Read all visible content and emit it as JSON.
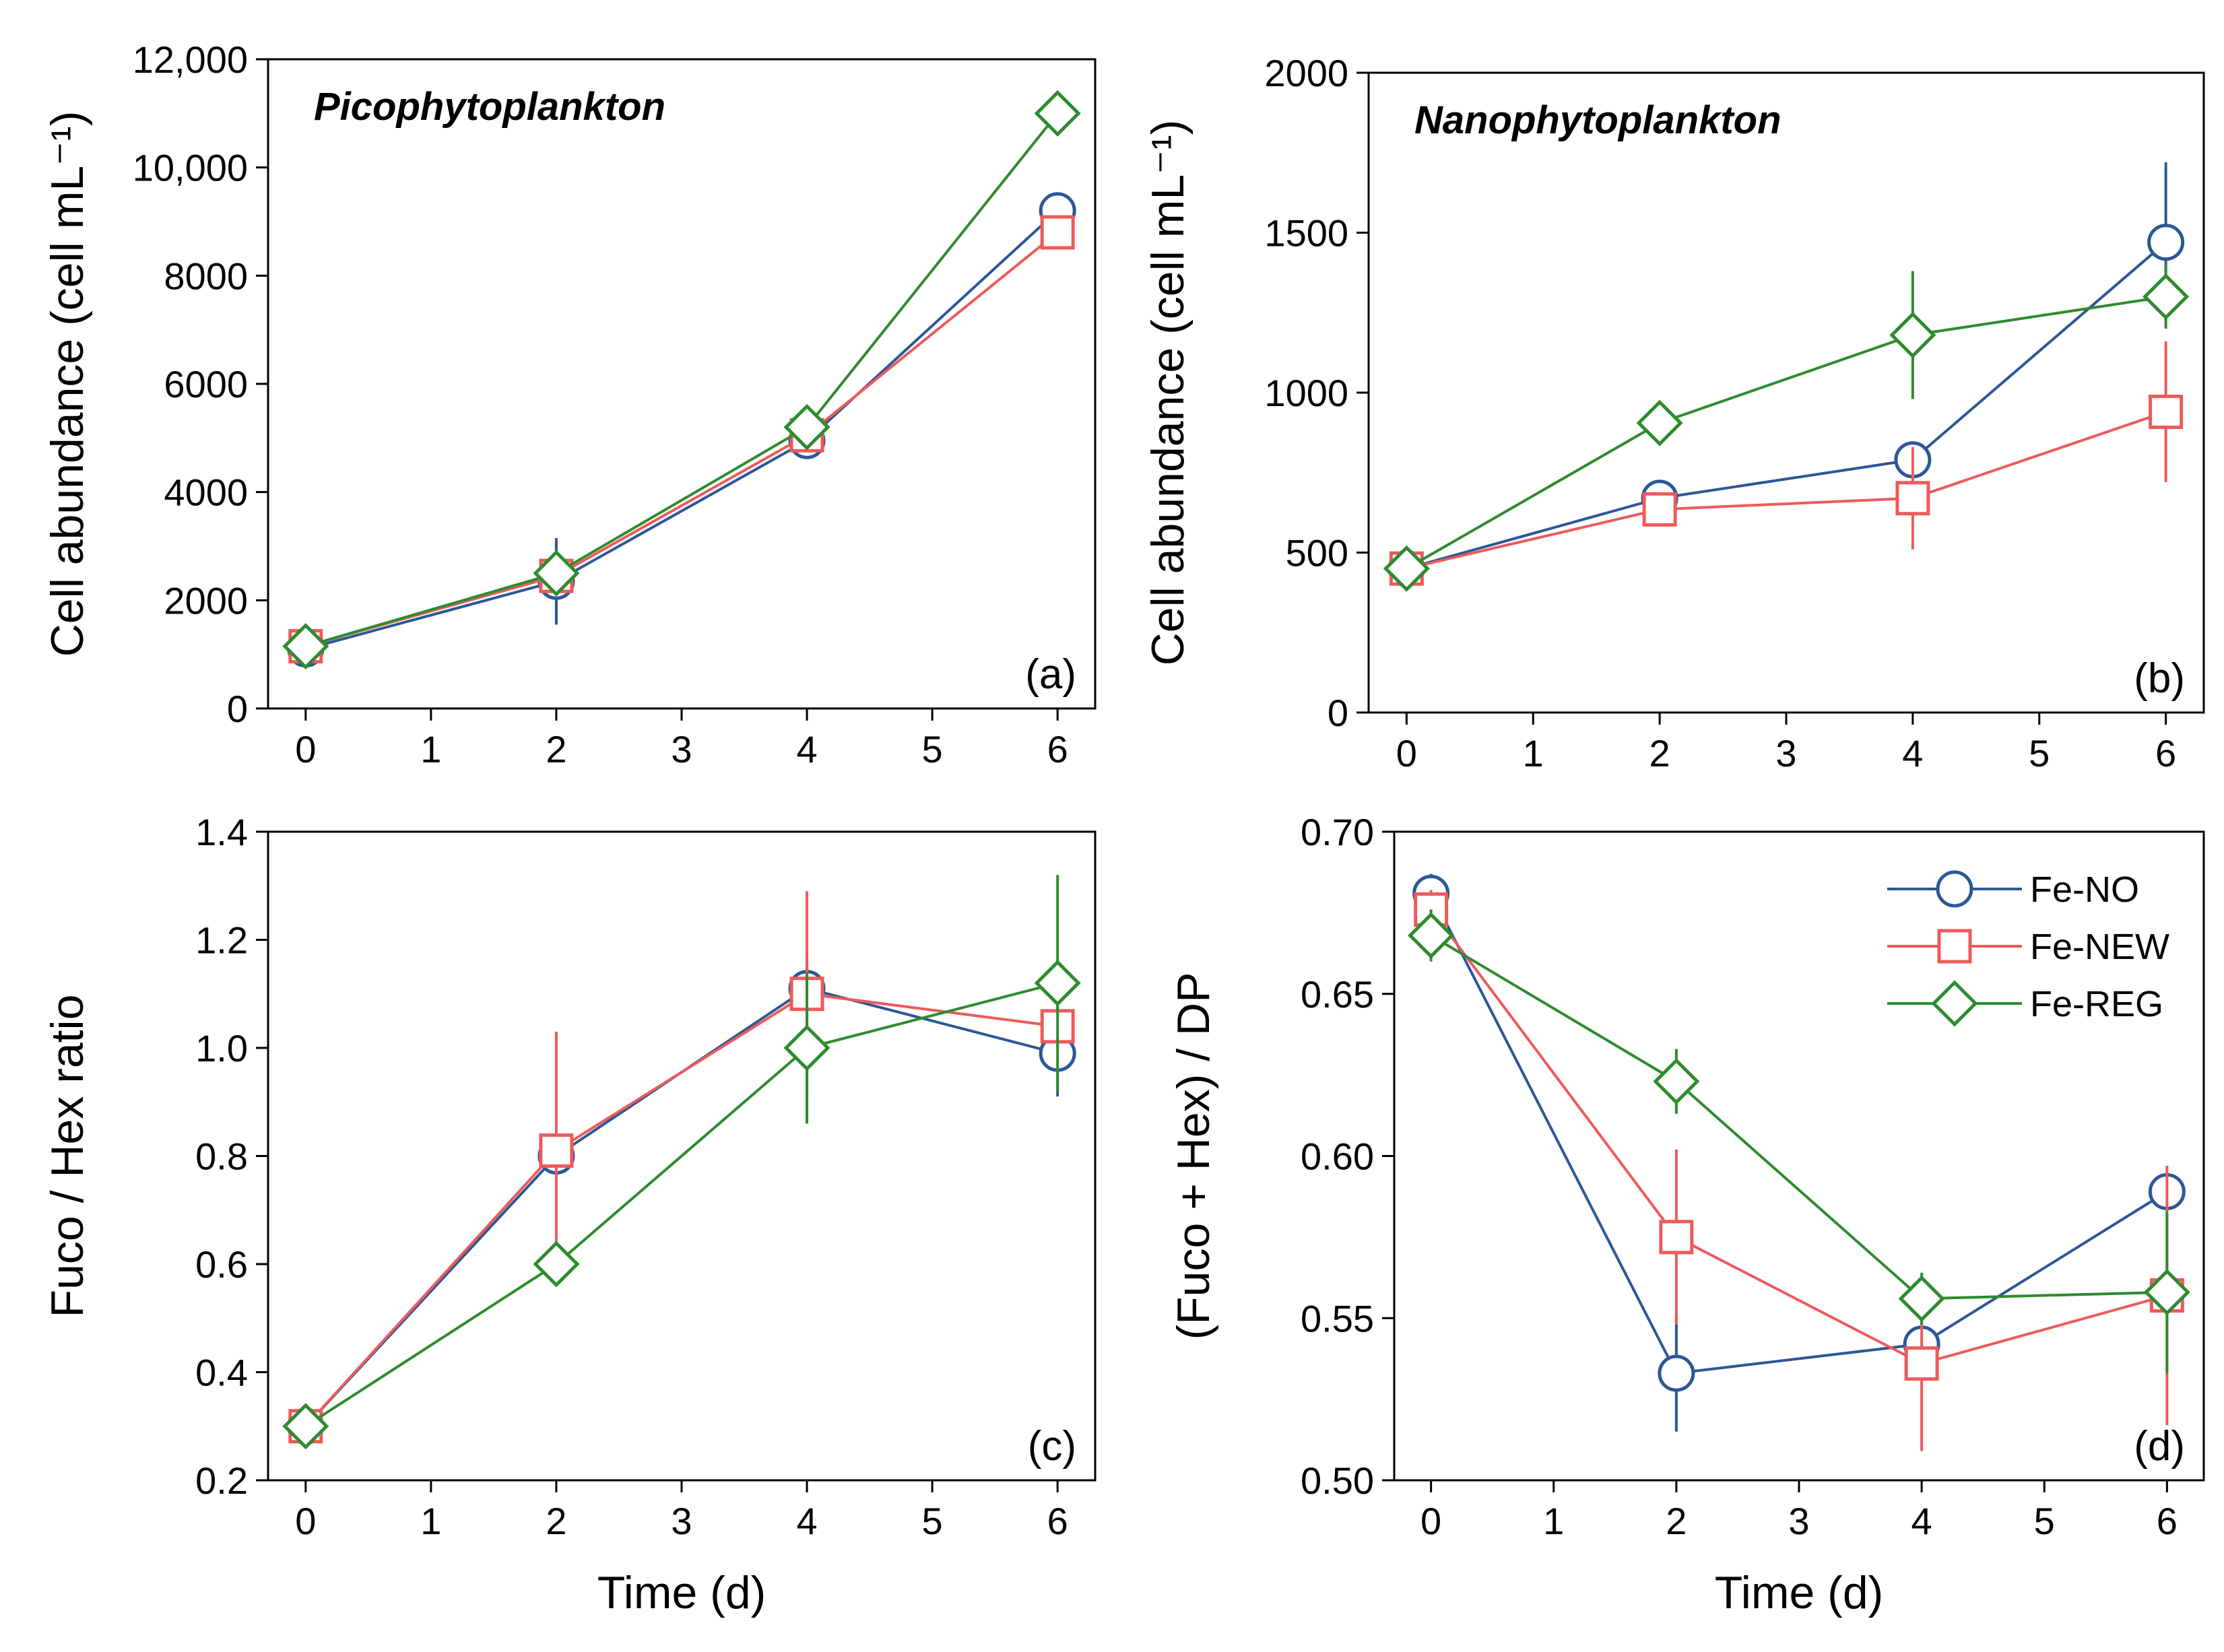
{
  "chart_data": [
    {
      "id": "a",
      "type": "line",
      "title": "Picophytoplankton",
      "panel_tag": "(a)",
      "xlabel": "",
      "ylabel": "Cell abundance (cell mL⁻¹)",
      "x": [
        0,
        2,
        4,
        6
      ],
      "xlim": [
        -0.3,
        6.3
      ],
      "ylim": [
        0,
        12000
      ],
      "xticks": [
        0,
        1,
        2,
        3,
        4,
        5,
        6
      ],
      "yticks": [
        0,
        2000,
        4000,
        6000,
        8000,
        10000,
        12000
      ],
      "ytick_labels": [
        "0",
        "2000",
        "4000",
        "6000",
        "8000",
        "10,000",
        "12,000"
      ],
      "series": [
        {
          "name": "Fe-NO",
          "color": "#2b5797",
          "marker": "circle",
          "values": [
            1100,
            2350,
            4950,
            9200
          ],
          "err": [
            100,
            800,
            100,
            120
          ]
        },
        {
          "name": "Fe-NEW",
          "color": "#ee5a5a",
          "marker": "square",
          "values": [
            1150,
            2450,
            5050,
            8800
          ],
          "err": [
            100,
            300,
            100,
            120
          ]
        },
        {
          "name": "Fe-REG",
          "color": "#2e8b2e",
          "marker": "diamond",
          "values": [
            1150,
            2500,
            5200,
            11000
          ],
          "err": [
            100,
            200,
            120,
            100
          ]
        }
      ]
    },
    {
      "id": "b",
      "type": "line",
      "title": "Nanophytoplankton",
      "panel_tag": "(b)",
      "xlabel": "",
      "ylabel": "Cell abundance (cell mL⁻¹)",
      "x": [
        0,
        2,
        4,
        6
      ],
      "xlim": [
        -0.3,
        6.3
      ],
      "ylim": [
        0,
        2000
      ],
      "xticks": [
        0,
        1,
        2,
        3,
        4,
        5,
        6
      ],
      "yticks": [
        0,
        500,
        1000,
        1500,
        2000
      ],
      "ytick_labels": [
        "0",
        "500",
        "1000",
        "1500",
        "2000"
      ],
      "series": [
        {
          "name": "Fe-NO",
          "color": "#2b5797",
          "marker": "circle",
          "values": [
            450,
            670,
            790,
            1470
          ],
          "err": [
            20,
            30,
            40,
            250
          ]
        },
        {
          "name": "Fe-NEW",
          "color": "#ee5a5a",
          "marker": "square",
          "values": [
            450,
            635,
            670,
            940
          ],
          "err": [
            20,
            30,
            160,
            220
          ]
        },
        {
          "name": "Fe-REG",
          "color": "#2e8b2e",
          "marker": "diamond",
          "values": [
            450,
            905,
            1180,
            1300
          ],
          "err": [
            20,
            30,
            200,
            100
          ]
        }
      ]
    },
    {
      "id": "c",
      "type": "line",
      "title": "",
      "panel_tag": "(c)",
      "xlabel": "Time (d)",
      "ylabel": "Fuco / Hex ratio",
      "x": [
        0,
        2,
        4,
        6
      ],
      "xlim": [
        -0.3,
        6.3
      ],
      "ylim": [
        0.2,
        1.4
      ],
      "xticks": [
        0,
        1,
        2,
        3,
        4,
        5,
        6
      ],
      "yticks": [
        0.2,
        0.4,
        0.6,
        0.8,
        1.0,
        1.2,
        1.4
      ],
      "ytick_labels": [
        "0.2",
        "0.4",
        "0.6",
        "0.8",
        "1.0",
        "1.2",
        "1.4"
      ],
      "series": [
        {
          "name": "Fe-NO",
          "color": "#2b5797",
          "marker": "circle",
          "values": [
            0.3,
            0.8,
            1.11,
            0.99
          ],
          "err": [
            0.02,
            0.02,
            0.07,
            0.08
          ]
        },
        {
          "name": "Fe-NEW",
          "color": "#ee5a5a",
          "marker": "square",
          "values": [
            0.3,
            0.81,
            1.1,
            1.04
          ],
          "err": [
            0.02,
            0.22,
            0.19,
            0.04
          ]
        },
        {
          "name": "Fe-REG",
          "color": "#2e8b2e",
          "marker": "diamond",
          "values": [
            0.3,
            0.6,
            1.0,
            1.12
          ],
          "err": [
            0.02,
            0.02,
            0.14,
            0.2
          ]
        }
      ]
    },
    {
      "id": "d",
      "type": "line",
      "title": "",
      "panel_tag": "(d)",
      "xlabel": "Time (d)",
      "ylabel": "(Fuco + Hex) / DP",
      "x": [
        0,
        2,
        4,
        6
      ],
      "xlim": [
        -0.3,
        6.3
      ],
      "ylim": [
        0.5,
        0.7
      ],
      "xticks": [
        0,
        1,
        2,
        3,
        4,
        5,
        6
      ],
      "yticks": [
        0.5,
        0.55,
        0.6,
        0.65,
        0.7
      ],
      "ytick_labels": [
        "0.50",
        "0.55",
        "0.60",
        "0.65",
        "0.70"
      ],
      "legend_position": "top-right",
      "series": [
        {
          "name": "Fe-NO",
          "color": "#2b5797",
          "marker": "circle",
          "values": [
            0.681,
            0.533,
            0.542,
            0.589
          ],
          "err": [
            0.006,
            0.018,
            0.003,
            0.006
          ]
        },
        {
          "name": "Fe-NEW",
          "color": "#ee5a5a",
          "marker": "square",
          "values": [
            0.676,
            0.575,
            0.536,
            0.557
          ],
          "err": [
            0.006,
            0.027,
            0.027,
            0.04
          ]
        },
        {
          "name": "Fe-REG",
          "color": "#2e8b2e",
          "marker": "diamond",
          "values": [
            0.668,
            0.623,
            0.556,
            0.558
          ],
          "err": [
            0.008,
            0.01,
            0.008,
            0.025
          ]
        }
      ]
    }
  ]
}
